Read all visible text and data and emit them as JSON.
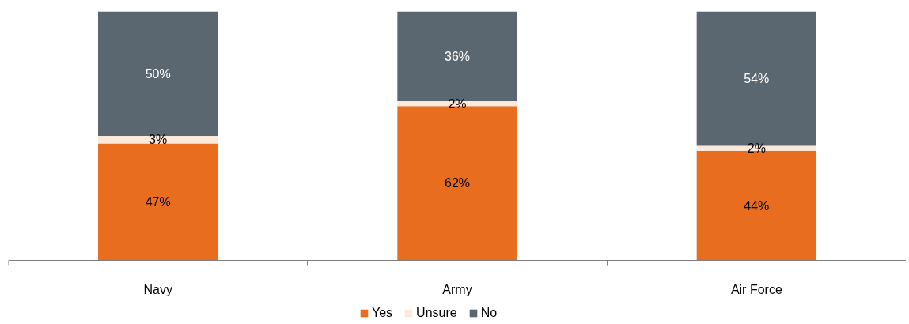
{
  "chart_data": {
    "type": "bar",
    "stacked": true,
    "categories": [
      "Navy",
      "Army",
      "Air Force"
    ],
    "series": [
      {
        "name": "Yes",
        "color": "#e86d1f",
        "values": [
          47,
          62,
          44
        ],
        "value_labels": [
          "47%",
          "62%",
          "44%"
        ]
      },
      {
        "name": "Unsure",
        "color": "#fde9d9",
        "values": [
          3,
          2,
          2
        ],
        "value_labels": [
          "3%",
          "2%",
          "2%"
        ]
      },
      {
        "name": "No",
        "color": "#5a6670",
        "values": [
          50,
          36,
          54
        ],
        "value_labels": [
          "50%",
          "36%",
          "54%"
        ]
      }
    ],
    "legend": "bottom",
    "tick_labels": "x"
  }
}
